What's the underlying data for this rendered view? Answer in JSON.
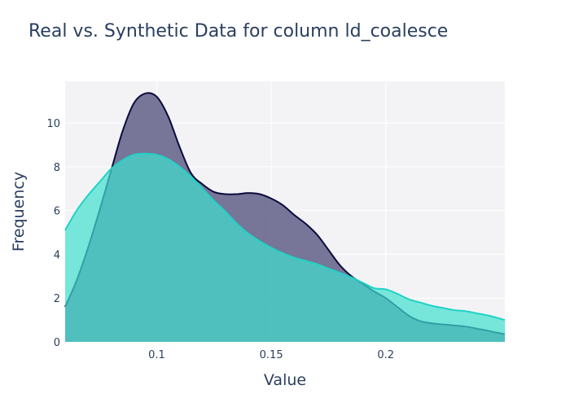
{
  "title": "Real vs. Synthetic Data for column ld_coalesce",
  "colors": {
    "real_fill": "rgba(78,75,120,0.75)",
    "real_line": "#0b0b3b",
    "synthetic_fill": "rgba(64,224,208,0.7)",
    "synthetic_line": "#1fd3c6",
    "plot_bg": "#f3f3f6",
    "grid": "#ffffff",
    "text": "#2a3f5f"
  },
  "chart_data": {
    "type": "area",
    "title": "Real vs. Synthetic Data for column ld_coalesce",
    "xlabel": "Value",
    "ylabel": "Frequency",
    "xlim": [
      0.06,
      0.252
    ],
    "ylim": [
      0,
      11.9
    ],
    "xticks": [
      {
        "value": 0.1,
        "label": "0.1"
      },
      {
        "value": 0.15,
        "label": "0.15"
      },
      {
        "value": 0.2,
        "label": "0.2"
      }
    ],
    "yticks": [
      {
        "value": 0,
        "label": "0"
      },
      {
        "value": 2,
        "label": "2"
      },
      {
        "value": 4,
        "label": "4"
      },
      {
        "value": 6,
        "label": "6"
      },
      {
        "value": 8,
        "label": "8"
      },
      {
        "value": 10,
        "label": "10"
      }
    ],
    "grid": true,
    "legend": "none",
    "series": [
      {
        "key": "real",
        "x": [
          0.06,
          0.065,
          0.07,
          0.075,
          0.08,
          0.085,
          0.09,
          0.095,
          0.1,
          0.105,
          0.11,
          0.115,
          0.12,
          0.125,
          0.13,
          0.135,
          0.14,
          0.145,
          0.15,
          0.155,
          0.16,
          0.165,
          0.17,
          0.175,
          0.18,
          0.185,
          0.19,
          0.195,
          0.2,
          0.205,
          0.21,
          0.215,
          0.22,
          0.225,
          0.23,
          0.235,
          0.24,
          0.245,
          0.252
        ],
        "y": [
          1.6,
          2.8,
          4.3,
          6.0,
          7.8,
          9.6,
          10.9,
          11.35,
          11.2,
          10.3,
          8.9,
          7.7,
          7.2,
          6.85,
          6.75,
          6.75,
          6.8,
          6.75,
          6.55,
          6.25,
          5.8,
          5.4,
          4.9,
          4.2,
          3.5,
          3.0,
          2.65,
          2.3,
          2.0,
          1.6,
          1.2,
          0.95,
          0.85,
          0.8,
          0.75,
          0.7,
          0.6,
          0.5,
          0.35
        ]
      },
      {
        "key": "synthetic",
        "x": [
          0.06,
          0.065,
          0.07,
          0.075,
          0.08,
          0.085,
          0.09,
          0.095,
          0.1,
          0.105,
          0.11,
          0.115,
          0.12,
          0.125,
          0.13,
          0.135,
          0.14,
          0.145,
          0.15,
          0.155,
          0.16,
          0.165,
          0.17,
          0.175,
          0.18,
          0.185,
          0.19,
          0.195,
          0.2,
          0.205,
          0.21,
          0.215,
          0.22,
          0.225,
          0.23,
          0.235,
          0.24,
          0.245,
          0.252
        ],
        "y": [
          5.1,
          6.0,
          6.7,
          7.3,
          7.9,
          8.3,
          8.55,
          8.6,
          8.55,
          8.35,
          8.0,
          7.55,
          7.0,
          6.45,
          5.95,
          5.4,
          4.95,
          4.6,
          4.3,
          4.05,
          3.85,
          3.7,
          3.55,
          3.35,
          3.15,
          2.95,
          2.7,
          2.45,
          2.4,
          2.2,
          1.95,
          1.8,
          1.65,
          1.55,
          1.45,
          1.4,
          1.3,
          1.2,
          1.0
        ]
      }
    ]
  }
}
